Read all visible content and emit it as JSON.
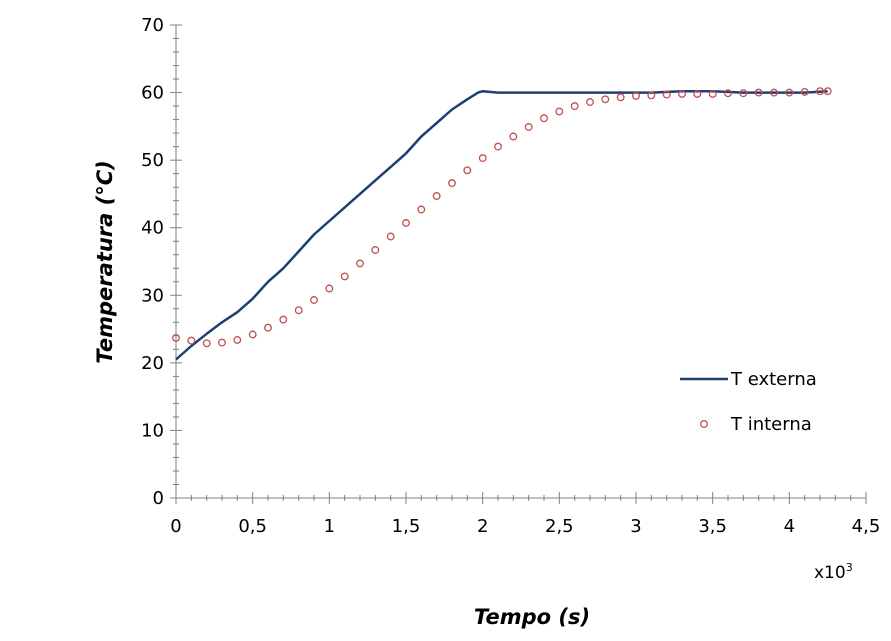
{
  "chart_data": {
    "type": "line",
    "xlabel": "Tempo (s)",
    "ylabel": "Temperatura (°C)",
    "x_multiplier": {
      "base": "x10",
      "exponent": "3"
    },
    "xlim": [
      0,
      4.5
    ],
    "ylim": [
      0,
      70
    ],
    "x_ticks": [
      "0",
      "0,5",
      "1",
      "1,5",
      "2",
      "2,5",
      "3",
      "3,5",
      "4",
      "4,5"
    ],
    "y_ticks": [
      "0",
      "10",
      "20",
      "30",
      "40",
      "50",
      "60",
      "70"
    ],
    "legend_position": "bottom-right",
    "grid": false,
    "series": [
      {
        "name": "T externa",
        "style": "line",
        "color": "#1f3f73",
        "x": [
          0,
          0.1,
          0.2,
          0.3,
          0.4,
          0.5,
          0.6,
          0.7,
          0.8,
          0.9,
          1.0,
          1.1,
          1.2,
          1.3,
          1.4,
          1.5,
          1.6,
          1.7,
          1.8,
          1.9,
          1.97,
          2.0,
          2.1,
          2.3,
          2.5,
          2.7,
          2.9,
          3.1,
          3.3,
          3.5,
          3.7,
          3.9,
          4.1,
          4.25
        ],
        "y": [
          20.5,
          22.5,
          24.3,
          26,
          27.5,
          29.5,
          32,
          34,
          36.5,
          39,
          41,
          43,
          45,
          47,
          49,
          51,
          53.5,
          55.5,
          57.5,
          59,
          60,
          60.2,
          60,
          60,
          60,
          60,
          60,
          60,
          60.2,
          60.2,
          60,
          60,
          60,
          60.2
        ]
      },
      {
        "name": "T interna",
        "style": "markers",
        "color": "#c0504d",
        "x": [
          0,
          0.1,
          0.2,
          0.3,
          0.4,
          0.5,
          0.6,
          0.7,
          0.8,
          0.9,
          1.0,
          1.1,
          1.2,
          1.3,
          1.4,
          1.5,
          1.6,
          1.7,
          1.8,
          1.9,
          2.0,
          2.1,
          2.2,
          2.3,
          2.4,
          2.5,
          2.6,
          2.7,
          2.8,
          2.9,
          3.0,
          3.1,
          3.2,
          3.3,
          3.4,
          3.5,
          3.6,
          3.7,
          3.8,
          3.9,
          4.0,
          4.1,
          4.2,
          4.25
        ],
        "y": [
          23.7,
          23.3,
          22.9,
          23.0,
          23.4,
          24.2,
          25.2,
          26.4,
          27.8,
          29.3,
          31.0,
          32.8,
          34.7,
          36.7,
          38.7,
          40.7,
          42.7,
          44.7,
          46.6,
          48.5,
          50.3,
          52.0,
          53.5,
          54.9,
          56.2,
          57.2,
          58.0,
          58.6,
          59.0,
          59.3,
          59.5,
          59.6,
          59.7,
          59.8,
          59.8,
          59.8,
          59.9,
          59.9,
          60.0,
          60.0,
          60.0,
          60.1,
          60.2,
          60.2
        ]
      }
    ]
  }
}
